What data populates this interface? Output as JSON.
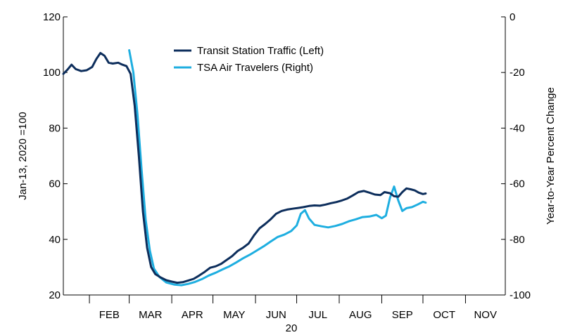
{
  "chart_data": {
    "type": "line",
    "title": "",
    "x_axis": {
      "type": "date",
      "range": [
        "2020-01-13",
        "2020-11-30"
      ],
      "month_labels": [
        "FEB",
        "MAR",
        "APR",
        "MAY",
        "JUN",
        "JUL",
        "AUG",
        "SEP",
        "OCT",
        "NOV"
      ],
      "month_starts": [
        "2020-02-01",
        "2020-03-01",
        "2020-04-01",
        "2020-05-01",
        "2020-06-01",
        "2020-07-01",
        "2020-08-01",
        "2020-09-01",
        "2020-10-01",
        "2020-11-01",
        "2020-12-01"
      ],
      "year_label": "20"
    },
    "left_axis": {
      "label": "Jan-13, 2020 =100",
      "range": [
        20,
        120
      ],
      "ticks": [
        20,
        40,
        60,
        80,
        100,
        120
      ]
    },
    "right_axis": {
      "label": "Year-to-Year Percent Change",
      "range": [
        -100,
        0
      ],
      "ticks": [
        -100,
        -80,
        -60,
        -40,
        -20,
        0
      ]
    },
    "legend_position": "top-center",
    "series": [
      {
        "name": "Transit Station Traffic (Left)",
        "axis": "left",
        "color": "#0d2e5c",
        "points": [
          [
            "2020-01-13",
            99.5
          ],
          [
            "2020-01-16",
            101
          ],
          [
            "2020-01-19",
            102.8
          ],
          [
            "2020-01-22",
            101.2
          ],
          [
            "2020-01-26",
            100.5
          ],
          [
            "2020-01-30",
            100.8
          ],
          [
            "2020-02-03",
            102
          ],
          [
            "2020-02-06",
            104.8
          ],
          [
            "2020-02-09",
            107
          ],
          [
            "2020-02-12",
            106
          ],
          [
            "2020-02-15",
            103.5
          ],
          [
            "2020-02-18",
            103.2
          ],
          [
            "2020-02-22",
            103.5
          ],
          [
            "2020-02-25",
            102.8
          ],
          [
            "2020-02-28",
            102.3
          ],
          [
            "2020-03-02",
            99.5
          ],
          [
            "2020-03-05",
            88
          ],
          [
            "2020-03-08",
            70
          ],
          [
            "2020-03-11",
            50
          ],
          [
            "2020-03-14",
            37
          ],
          [
            "2020-03-17",
            30
          ],
          [
            "2020-03-20",
            27.5
          ],
          [
            "2020-03-24",
            26.3
          ],
          [
            "2020-03-28",
            25.3
          ],
          [
            "2020-04-01",
            24.8
          ],
          [
            "2020-04-05",
            24.4
          ],
          [
            "2020-04-09",
            24.6
          ],
          [
            "2020-04-13",
            25.2
          ],
          [
            "2020-04-17",
            25.8
          ],
          [
            "2020-04-21",
            27
          ],
          [
            "2020-04-25",
            28.3
          ],
          [
            "2020-04-29",
            29.8
          ],
          [
            "2020-05-03",
            30.3
          ],
          [
            "2020-05-07",
            31.2
          ],
          [
            "2020-05-11",
            32.6
          ],
          [
            "2020-05-15",
            34
          ],
          [
            "2020-05-19",
            35.8
          ],
          [
            "2020-05-23",
            37
          ],
          [
            "2020-05-27",
            38.5
          ],
          [
            "2020-05-31",
            41.5
          ],
          [
            "2020-06-04",
            44
          ],
          [
            "2020-06-08",
            45.5
          ],
          [
            "2020-06-12",
            47.2
          ],
          [
            "2020-06-16",
            49.2
          ],
          [
            "2020-06-20",
            50.2
          ],
          [
            "2020-06-24",
            50.7
          ],
          [
            "2020-06-28",
            51
          ],
          [
            "2020-07-02",
            51.3
          ],
          [
            "2020-07-06",
            51.6
          ],
          [
            "2020-07-10",
            52
          ],
          [
            "2020-07-14",
            52.2
          ],
          [
            "2020-07-18",
            52.1
          ],
          [
            "2020-07-22",
            52.5
          ],
          [
            "2020-07-26",
            53
          ],
          [
            "2020-07-30",
            53.4
          ],
          [
            "2020-08-03",
            54
          ],
          [
            "2020-08-07",
            54.7
          ],
          [
            "2020-08-11",
            55.8
          ],
          [
            "2020-08-15",
            57
          ],
          [
            "2020-08-19",
            57.4
          ],
          [
            "2020-08-23",
            56.8
          ],
          [
            "2020-08-27",
            56.1
          ],
          [
            "2020-08-31",
            55.9
          ],
          [
            "2020-09-03",
            57
          ],
          [
            "2020-09-07",
            56.6
          ],
          [
            "2020-09-10",
            55.5
          ],
          [
            "2020-09-13",
            55.3
          ],
          [
            "2020-09-16",
            57
          ],
          [
            "2020-09-19",
            58.3
          ],
          [
            "2020-09-22",
            58
          ],
          [
            "2020-09-25",
            57.6
          ],
          [
            "2020-09-28",
            56.8
          ],
          [
            "2020-10-01",
            56.3
          ],
          [
            "2020-10-03",
            56.5
          ]
        ]
      },
      {
        "name": "TSA Air Travelers (Right)",
        "axis": "right",
        "color": "#1eaee0",
        "points": [
          [
            "2020-03-01",
            -12
          ],
          [
            "2020-03-04",
            -20
          ],
          [
            "2020-03-07",
            -35
          ],
          [
            "2020-03-10",
            -55
          ],
          [
            "2020-03-13",
            -73
          ],
          [
            "2020-03-16",
            -84
          ],
          [
            "2020-03-19",
            -90.5
          ],
          [
            "2020-03-23",
            -93.5
          ],
          [
            "2020-03-28",
            -95.5
          ],
          [
            "2020-04-03",
            -96.3
          ],
          [
            "2020-04-08",
            -96.5
          ],
          [
            "2020-04-13",
            -96
          ],
          [
            "2020-04-18",
            -95.3
          ],
          [
            "2020-04-23",
            -94.3
          ],
          [
            "2020-04-28",
            -93
          ],
          [
            "2020-05-03",
            -92
          ],
          [
            "2020-05-08",
            -90.8
          ],
          [
            "2020-05-13",
            -89.7
          ],
          [
            "2020-05-18",
            -88.3
          ],
          [
            "2020-05-23",
            -86.8
          ],
          [
            "2020-05-28",
            -85.5
          ],
          [
            "2020-06-02",
            -84
          ],
          [
            "2020-06-07",
            -82.5
          ],
          [
            "2020-06-12",
            -80.8
          ],
          [
            "2020-06-17",
            -79.2
          ],
          [
            "2020-06-22",
            -78.3
          ],
          [
            "2020-06-27",
            -77
          ],
          [
            "2020-07-01",
            -75
          ],
          [
            "2020-07-04",
            -70.8
          ],
          [
            "2020-07-07",
            -69.5
          ],
          [
            "2020-07-10",
            -72.5
          ],
          [
            "2020-07-14",
            -74.8
          ],
          [
            "2020-07-19",
            -75.3
          ],
          [
            "2020-07-24",
            -75.7
          ],
          [
            "2020-07-29",
            -75.2
          ],
          [
            "2020-08-03",
            -74.5
          ],
          [
            "2020-08-08",
            -73.5
          ],
          [
            "2020-08-13",
            -72.8
          ],
          [
            "2020-08-18",
            -72
          ],
          [
            "2020-08-23",
            -71.8
          ],
          [
            "2020-08-28",
            -71.2
          ],
          [
            "2020-09-01",
            -72.4
          ],
          [
            "2020-09-04",
            -71.5
          ],
          [
            "2020-09-07",
            -65
          ],
          [
            "2020-09-10",
            -61
          ],
          [
            "2020-09-13",
            -66
          ],
          [
            "2020-09-16",
            -69.8
          ],
          [
            "2020-09-19",
            -68.8
          ],
          [
            "2020-09-23",
            -68.4
          ],
          [
            "2020-09-27",
            -67.5
          ],
          [
            "2020-10-01",
            -66.5
          ],
          [
            "2020-10-03",
            -66.8
          ]
        ]
      }
    ]
  }
}
